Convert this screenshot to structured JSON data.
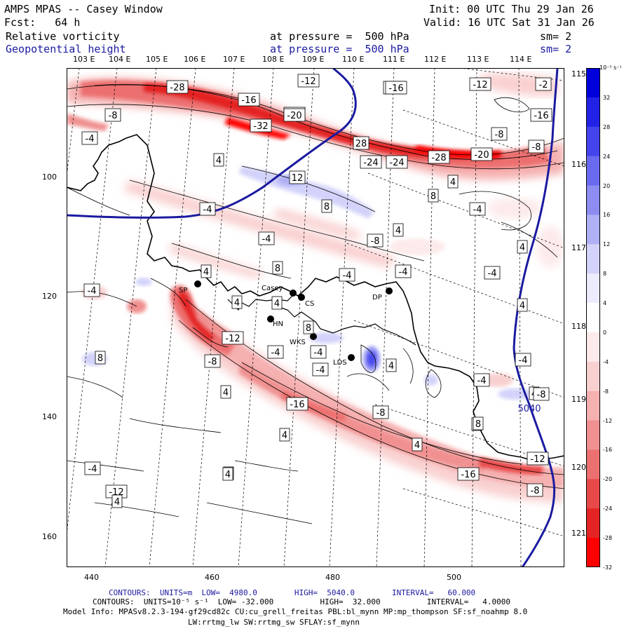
{
  "header": {
    "model": "AMPS MPAS -- Casey Window",
    "init": "Init: 00 UTC Thu 29 Jan 26",
    "fcst": "Fcst:   64 h",
    "valid": "Valid: 16 UTC Sat 31 Jan 26",
    "field1": "Relative vorticity",
    "field1_level": "at pressure =  500 hPa",
    "field1_sm": "sm= 2",
    "field2": "Geopotential height",
    "field2_level": "at pressure =  500 hPa",
    "field2_sm": "sm= 2"
  },
  "lon_labels": [
    "103 E",
    "104 E",
    "105 E",
    "106 E",
    "107 E",
    "108 E",
    "109 E",
    "110 E",
    "111 E",
    "112 E",
    "113 E",
    "114 E"
  ],
  "right_lon_labels": [
    "115 E",
    "116 E",
    "117 E",
    "118 E",
    "119 E",
    "120 E",
    "121 E"
  ],
  "y_ticks": [
    "100",
    "120",
    "140",
    "160"
  ],
  "x_ticks": [
    "440",
    "460",
    "480",
    "500"
  ],
  "colorbar": {
    "unit": "10⁻⁵ s⁻¹",
    "labels": [
      "32",
      "28",
      "24",
      "20",
      "16",
      "12",
      "8",
      "4",
      "0",
      "-4",
      "-8",
      "-12",
      "-16",
      "-20",
      "-24",
      "-28",
      "-32"
    ],
    "colors": [
      "#0000dd",
      "#2222e6",
      "#4444ec",
      "#6a6af0",
      "#8c8cf2",
      "#b0b0f6",
      "#d2d2fa",
      "#ececfd",
      "#ffffff",
      "#fdeaea",
      "#f9d0d0",
      "#f5b0b0",
      "#f09090",
      "#ec7070",
      "#e84848",
      "#e42424",
      "#ff0000"
    ]
  },
  "stations": [
    {
      "label": "Casey"
    },
    {
      "label": "CS"
    },
    {
      "label": "DP"
    },
    {
      "label": "HN"
    },
    {
      "label": "WKS"
    },
    {
      "label": "LDS"
    },
    {
      "label": "SP"
    }
  ],
  "contour_labels": [
    "-28",
    "-16",
    "-12",
    "-20",
    "-16",
    "-12",
    "-2",
    "-8",
    "-4",
    "-16",
    "-20",
    "-32",
    "28",
    "-24",
    "-16",
    "-8",
    "-24",
    "-28",
    "-20",
    "-8",
    "4",
    "12",
    "4",
    "8",
    "8",
    "-4",
    "-4",
    "4",
    "-4",
    "-8",
    "8",
    "-4",
    "-4",
    "-4",
    "4",
    "4",
    "4",
    "4",
    "-4",
    "4",
    "-4",
    "8",
    "-12",
    "-4",
    "-8",
    "-4",
    "-4",
    "8",
    "4",
    "4",
    "-4",
    "4",
    "-8",
    "4",
    "-16",
    "-8",
    "8",
    "5040",
    "8",
    "4",
    "-12",
    "-16",
    "4",
    "-4",
    "-12",
    "-8",
    "4",
    "4"
  ],
  "footer": {
    "contours1": "CONTOURS:  UNITS=m  LOW=  4980.0        HIGH=  5040.0        INTERVAL=   60.000",
    "contours2": "CONTOURS:  UNITS=10⁻⁵ s⁻¹  LOW= -32.000          HIGH=  32.000          INTERVAL=   4.0000",
    "model_info": "Model Info: MPASv8.2.3-194-gf29cd82c CU:cu_grell_freitas PBL:bl_mynn MP:mp_thompson SF:sf_noahmp 8.0",
    "model_info2": "LW:rrtmg_lw SW:rrtmg_sw SFLAY:sf_mynn"
  }
}
